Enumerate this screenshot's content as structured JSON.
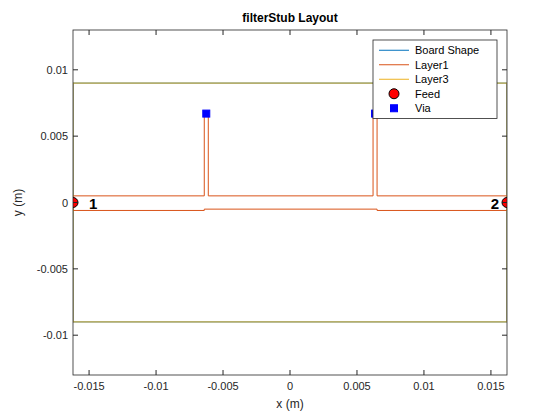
{
  "chart_data": {
    "type": "line",
    "title": "filterStub Layout",
    "x_label": "x (m)",
    "y_label": "y (m)",
    "xlim": [
      -0.0162,
      0.0162
    ],
    "ylim": [
      -0.013,
      0.013
    ],
    "xticks": [
      -0.015,
      -0.01,
      -0.005,
      0,
      0.005,
      0.01,
      0.015
    ],
    "yticks": [
      -0.01,
      -0.005,
      0,
      0.005,
      0.01
    ],
    "grid": false,
    "legend": "northeast",
    "series": [
      {
        "name": "Board Shape",
        "type": "line",
        "color": "#0072bd",
        "line_style": "solid",
        "x": [
          -0.0162,
          0.0162,
          0.0162,
          -0.0162,
          -0.0162
        ],
        "values": [
          -0.009,
          -0.009,
          0.009,
          0.009,
          -0.009
        ]
      },
      {
        "name": "Layer1",
        "type": "line",
        "color": "#d95319",
        "line_style": "solid",
        "x": [
          -0.0162,
          -0.0064,
          -0.0064,
          -0.0061,
          -0.0061,
          0.0062,
          0.0062,
          0.0065,
          0.0065,
          0.0162,
          0.0162,
          0.0065,
          0.0065,
          -0.0064,
          -0.0064,
          -0.0162,
          -0.0162
        ],
        "values": [
          0.0005,
          0.0005,
          0.0068,
          0.0068,
          0.0005,
          0.0005,
          0.0068,
          0.0068,
          0.0005,
          0.0005,
          -0.0006,
          -0.0006,
          -0.0005,
          -0.0005,
          -0.0006,
          -0.0006,
          0.0005
        ]
      },
      {
        "name": "Layer3",
        "type": "line",
        "color": "#edb120",
        "line_style": "solid",
        "x": [
          -0.0162,
          0.0162,
          0.0162,
          -0.0162,
          -0.0162
        ],
        "values": [
          -0.009,
          -0.009,
          0.009,
          0.009,
          -0.009
        ]
      },
      {
        "name": "Feed",
        "type": "scatter",
        "color": "#ff0000",
        "marker": "circle",
        "x": [
          -0.0162,
          0.0162
        ],
        "values": [
          0,
          0
        ]
      },
      {
        "name": "Via",
        "type": "scatter",
        "color": "#0000ff",
        "marker": "square",
        "x": [
          -0.00625,
          0.00635
        ],
        "values": [
          0.0067,
          0.0067
        ]
      }
    ],
    "annotations": [
      {
        "text": "1",
        "x": -0.0147,
        "y": 0
      },
      {
        "text": "2",
        "x": 0.0153,
        "y": 0
      }
    ]
  }
}
